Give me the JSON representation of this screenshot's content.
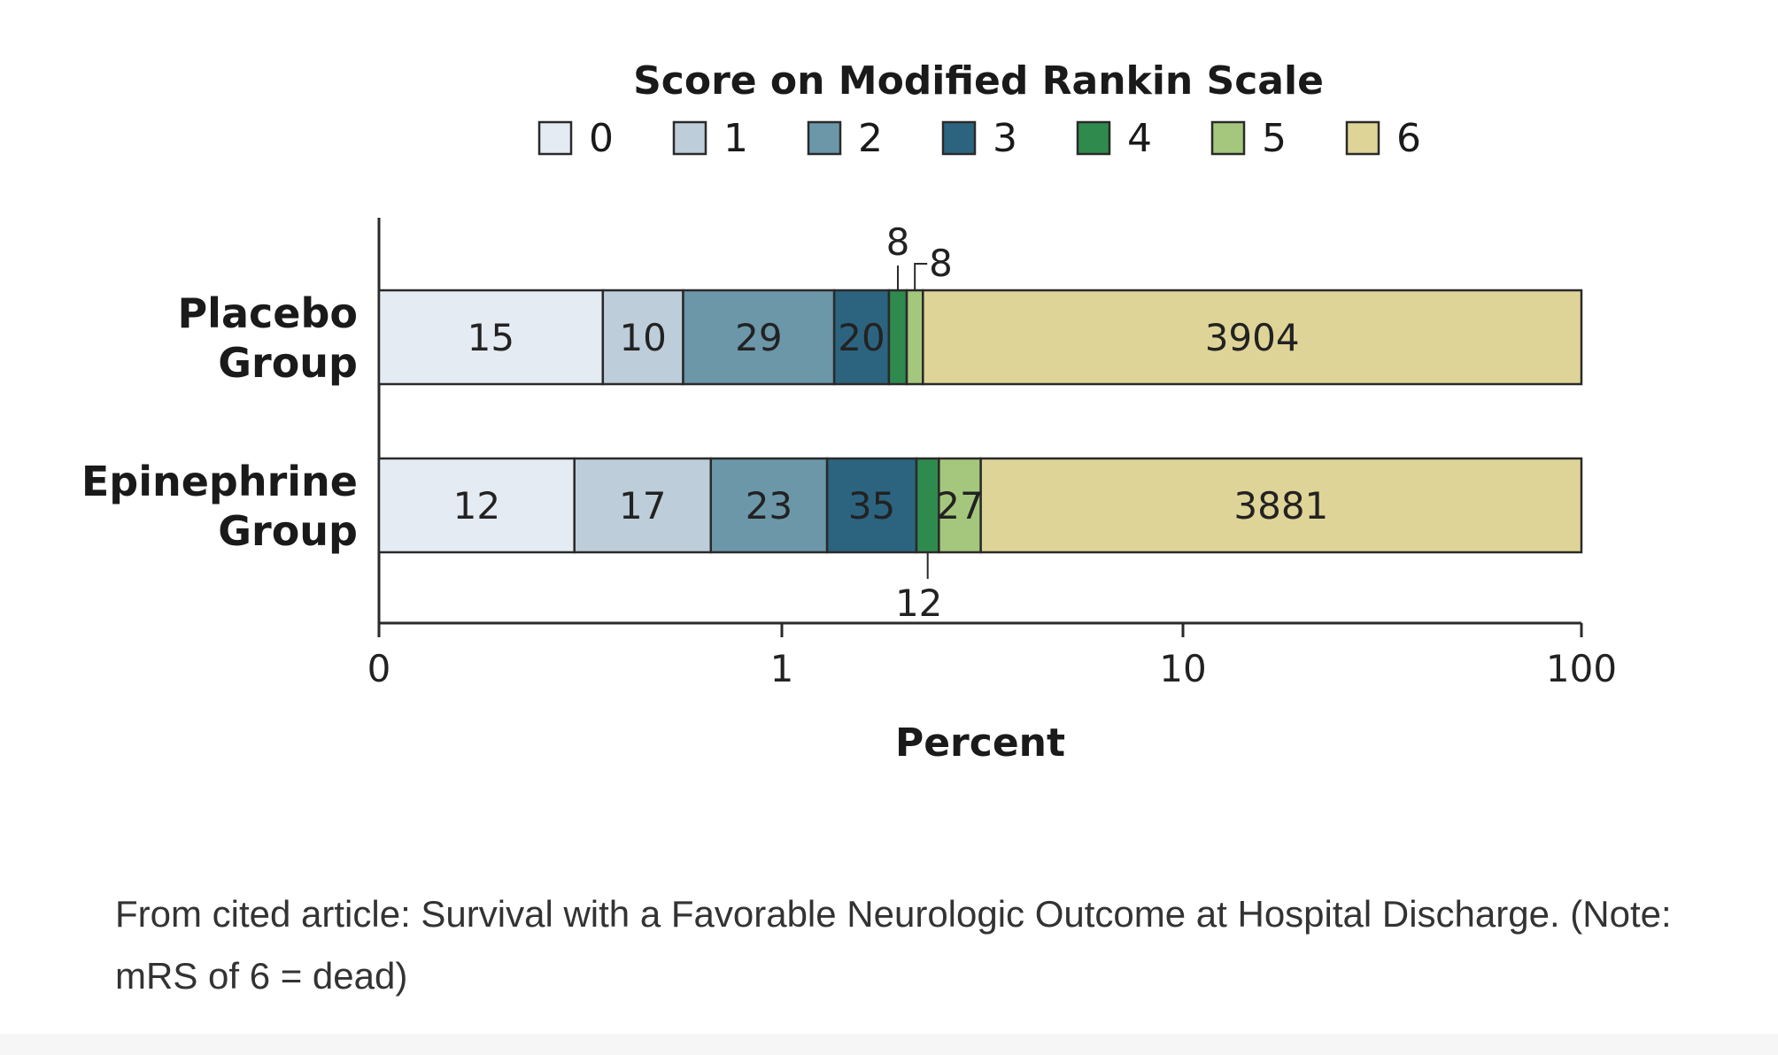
{
  "chart_data": {
    "type": "bar",
    "orientation": "horizontal",
    "stacked": true,
    "legend_title": "Score on Modified Rankin Scale",
    "legend": [
      {
        "label": "0",
        "color": "#e4ebf2"
      },
      {
        "label": "1",
        "color": "#bdcdd9"
      },
      {
        "label": "2",
        "color": "#6b97a9"
      },
      {
        "label": "3",
        "color": "#2c6480"
      },
      {
        "label": "4",
        "color": "#2f8a4e"
      },
      {
        "label": "5",
        "color": "#a5c77d"
      },
      {
        "label": "6",
        "color": "#dfd497"
      }
    ],
    "legend_placement": "top",
    "categories": [
      "Placebo Group",
      "Epinephrine Group"
    ],
    "series": [
      {
        "name": "0",
        "values": [
          15,
          12
        ]
      },
      {
        "name": "1",
        "values": [
          10,
          17
        ]
      },
      {
        "name": "2",
        "values": [
          29,
          23
        ]
      },
      {
        "name": "3",
        "values": [
          20,
          35
        ]
      },
      {
        "name": "4",
        "values": [
          8,
          12
        ]
      },
      {
        "name": "5",
        "values": [
          8,
          27
        ]
      },
      {
        "name": "6",
        "values": [
          3904,
          3881
        ]
      }
    ],
    "xlabel": "Percent",
    "xscale": "log",
    "xticks": [
      "0",
      "1",
      "10",
      "100"
    ],
    "grid": false
  },
  "caption": "From cited article: Survival with a Favorable Neurologic Outcome at Hospital Discharge. (Note: mRS of 6 = dead)"
}
